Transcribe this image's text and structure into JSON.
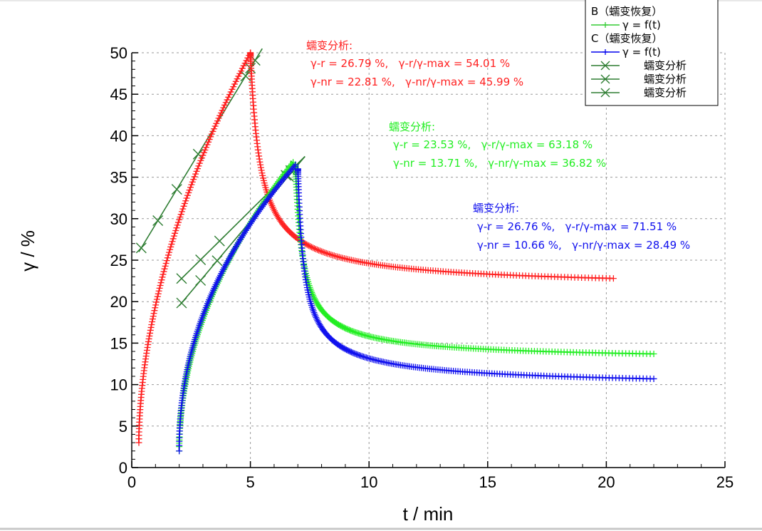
{
  "chart_data": {
    "type": "line",
    "xlabel": "t / min",
    "ylabel": "γ / %",
    "xlim": [
      0,
      25
    ],
    "ylim": [
      0,
      50
    ],
    "xticks": [
      0,
      5,
      10,
      15,
      20,
      25
    ],
    "yticks": [
      0,
      5,
      10,
      15,
      20,
      25,
      30,
      35,
      40,
      45,
      50
    ],
    "grid": true,
    "legend_position": "top-right",
    "legend": [
      {
        "text": "B（蠕变恢复）",
        "kind": "header"
      },
      {
        "text": "γ = f(t)",
        "kind": "series",
        "color": "#33cc33",
        "marker": "plus"
      },
      {
        "text": "C（蠕变恢复）",
        "kind": "header"
      },
      {
        "text": "γ = f(t)",
        "kind": "series",
        "color": "#0000ee",
        "marker": "plus"
      },
      {
        "text": "蠕变分析",
        "kind": "series",
        "color": "#2e7d32",
        "marker": "x"
      },
      {
        "text": "蠕变分析",
        "kind": "series",
        "color": "#2e7d32",
        "marker": "x"
      },
      {
        "text": "蠕变分析",
        "kind": "series",
        "color": "#2e7d32",
        "marker": "x"
      }
    ],
    "series": [
      {
        "color": "#ff2020",
        "creep": {
          "t0": 0.3,
          "t1": 5.0,
          "y0": 3.0,
          "y1": 50.0,
          "p": 0.55
        },
        "recovery": {
          "t0": 5.0,
          "t1": 20.3,
          "y0": 50.0,
          "y1": 22.8,
          "yinf": 21.5,
          "tau": 0.35
        }
      },
      {
        "name": "B γ = f(t)",
        "color": "#22ee22",
        "creep": {
          "t0": 2.0,
          "t1": 6.8,
          "y0": 2.0,
          "y1": 36.8,
          "p": 0.5
        },
        "recovery": {
          "t0": 6.9,
          "t1": 22.0,
          "y0": 36.5,
          "y1": 13.7,
          "yinf": 12.8,
          "tau": 0.25
        }
      },
      {
        "name": "C γ = f(t)",
        "color": "#1010ee",
        "creep": {
          "t0": 2.0,
          "t1": 6.9,
          "y0": 2.0,
          "y1": 36.5,
          "p": 0.47
        },
        "recovery": {
          "t0": 7.0,
          "t1": 22.0,
          "y0": 36.0,
          "y1": 10.7,
          "yinf": 9.5,
          "tau": 0.2
        }
      }
    ],
    "fit_lines": [
      {
        "color": "#2e7d32",
        "x": [
          0.3,
          5.5
        ],
        "y": [
          26.0,
          50.5
        ],
        "marker_x": [
          0.4,
          1.1,
          1.9,
          2.8,
          4.8,
          5.0,
          5.2
        ]
      },
      {
        "color": "#2e7d32",
        "x": [
          2.0,
          7.3
        ],
        "y": [
          22.5,
          37.5
        ],
        "marker_x": [
          2.1,
          2.9,
          3.7,
          6.5,
          6.7,
          6.9
        ]
      },
      {
        "color": "#2e7d32",
        "x": [
          2.0,
          7.3
        ],
        "y": [
          19.5,
          37.5
        ],
        "marker_x": [
          2.1,
          2.9,
          3.6,
          6.6,
          6.8
        ]
      }
    ],
    "annotations": [
      {
        "color": "#ff2020",
        "title": "蠕变分析:",
        "line1": "γ-r = 26.79 %,   γ-r/γ-max = 54.01 %",
        "line2": "γ-nr = 22.81 %,   γ-nr/γ-max = 45.99 %"
      },
      {
        "color": "#22ee22",
        "title": "蠕变分析:",
        "line1": "γ-r = 23.53 %,   γ-r/γ-max = 63.18 %",
        "line2": "γ-nr = 13.71 %,   γ-nr/γ-max = 36.82 %"
      },
      {
        "color": "#1010ee",
        "title": "蠕变分析:",
        "line1": "γ-r = 26.76 %,   γ-r/γ-max = 71.51 %",
        "line2": "γ-nr = 10.66 %,   γ-nr/γ-max = 28.49 %"
      }
    ]
  }
}
